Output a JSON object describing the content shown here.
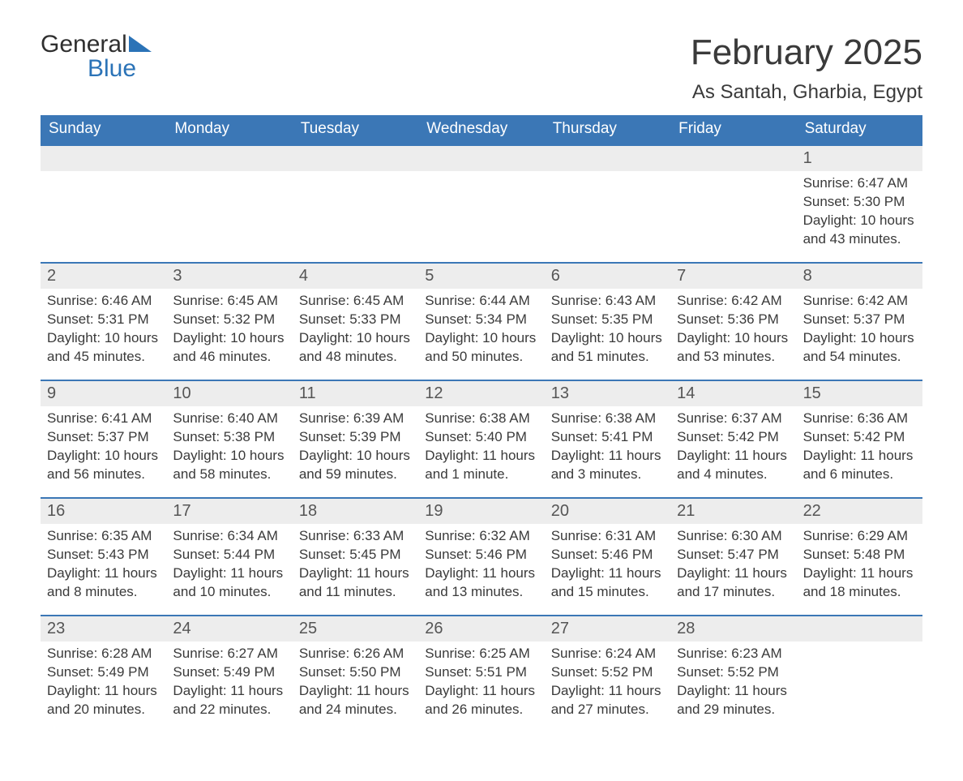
{
  "brand": {
    "word1": "General",
    "word2": "Blue",
    "color_general": "#2f2f2f",
    "color_blue": "#2b73b7",
    "triangle_color": "#2b73b7"
  },
  "header": {
    "month_title": "February 2025",
    "location": "As Santah, Gharbia, Egypt"
  },
  "style": {
    "header_bg": "#3b77b6",
    "header_text": "#ffffff",
    "daynum_bg": "#ededed",
    "daynum_border": "#3b77b6",
    "page_bg": "#ffffff",
    "body_text": "#3a3a3a",
    "daynum_text": "#555555",
    "title_fontsize": 44,
    "location_fontsize": 24,
    "weekday_fontsize": 19,
    "daynum_fontsize": 20,
    "detail_fontsize": 17
  },
  "calendar": {
    "columns": 7,
    "weekdays": [
      "Sunday",
      "Monday",
      "Tuesday",
      "Wednesday",
      "Thursday",
      "Friday",
      "Saturday"
    ],
    "weeks": [
      {
        "days": [
          {
            "num": "",
            "sunrise": "",
            "sunset": "",
            "daylight": ""
          },
          {
            "num": "",
            "sunrise": "",
            "sunset": "",
            "daylight": ""
          },
          {
            "num": "",
            "sunrise": "",
            "sunset": "",
            "daylight": ""
          },
          {
            "num": "",
            "sunrise": "",
            "sunset": "",
            "daylight": ""
          },
          {
            "num": "",
            "sunrise": "",
            "sunset": "",
            "daylight": ""
          },
          {
            "num": "",
            "sunrise": "",
            "sunset": "",
            "daylight": ""
          },
          {
            "num": "1",
            "sunrise": "Sunrise: 6:47 AM",
            "sunset": "Sunset: 5:30 PM",
            "daylight": "Daylight: 10 hours and 43 minutes."
          }
        ]
      },
      {
        "days": [
          {
            "num": "2",
            "sunrise": "Sunrise: 6:46 AM",
            "sunset": "Sunset: 5:31 PM",
            "daylight": "Daylight: 10 hours and 45 minutes."
          },
          {
            "num": "3",
            "sunrise": "Sunrise: 6:45 AM",
            "sunset": "Sunset: 5:32 PM",
            "daylight": "Daylight: 10 hours and 46 minutes."
          },
          {
            "num": "4",
            "sunrise": "Sunrise: 6:45 AM",
            "sunset": "Sunset: 5:33 PM",
            "daylight": "Daylight: 10 hours and 48 minutes."
          },
          {
            "num": "5",
            "sunrise": "Sunrise: 6:44 AM",
            "sunset": "Sunset: 5:34 PM",
            "daylight": "Daylight: 10 hours and 50 minutes."
          },
          {
            "num": "6",
            "sunrise": "Sunrise: 6:43 AM",
            "sunset": "Sunset: 5:35 PM",
            "daylight": "Daylight: 10 hours and 51 minutes."
          },
          {
            "num": "7",
            "sunrise": "Sunrise: 6:42 AM",
            "sunset": "Sunset: 5:36 PM",
            "daylight": "Daylight: 10 hours and 53 minutes."
          },
          {
            "num": "8",
            "sunrise": "Sunrise: 6:42 AM",
            "sunset": "Sunset: 5:37 PM",
            "daylight": "Daylight: 10 hours and 54 minutes."
          }
        ]
      },
      {
        "days": [
          {
            "num": "9",
            "sunrise": "Sunrise: 6:41 AM",
            "sunset": "Sunset: 5:37 PM",
            "daylight": "Daylight: 10 hours and 56 minutes."
          },
          {
            "num": "10",
            "sunrise": "Sunrise: 6:40 AM",
            "sunset": "Sunset: 5:38 PM",
            "daylight": "Daylight: 10 hours and 58 minutes."
          },
          {
            "num": "11",
            "sunrise": "Sunrise: 6:39 AM",
            "sunset": "Sunset: 5:39 PM",
            "daylight": "Daylight: 10 hours and 59 minutes."
          },
          {
            "num": "12",
            "sunrise": "Sunrise: 6:38 AM",
            "sunset": "Sunset: 5:40 PM",
            "daylight": "Daylight: 11 hours and 1 minute."
          },
          {
            "num": "13",
            "sunrise": "Sunrise: 6:38 AM",
            "sunset": "Sunset: 5:41 PM",
            "daylight": "Daylight: 11 hours and 3 minutes."
          },
          {
            "num": "14",
            "sunrise": "Sunrise: 6:37 AM",
            "sunset": "Sunset: 5:42 PM",
            "daylight": "Daylight: 11 hours and 4 minutes."
          },
          {
            "num": "15",
            "sunrise": "Sunrise: 6:36 AM",
            "sunset": "Sunset: 5:42 PM",
            "daylight": "Daylight: 11 hours and 6 minutes."
          }
        ]
      },
      {
        "days": [
          {
            "num": "16",
            "sunrise": "Sunrise: 6:35 AM",
            "sunset": "Sunset: 5:43 PM",
            "daylight": "Daylight: 11 hours and 8 minutes."
          },
          {
            "num": "17",
            "sunrise": "Sunrise: 6:34 AM",
            "sunset": "Sunset: 5:44 PM",
            "daylight": "Daylight: 11 hours and 10 minutes."
          },
          {
            "num": "18",
            "sunrise": "Sunrise: 6:33 AM",
            "sunset": "Sunset: 5:45 PM",
            "daylight": "Daylight: 11 hours and 11 minutes."
          },
          {
            "num": "19",
            "sunrise": "Sunrise: 6:32 AM",
            "sunset": "Sunset: 5:46 PM",
            "daylight": "Daylight: 11 hours and 13 minutes."
          },
          {
            "num": "20",
            "sunrise": "Sunrise: 6:31 AM",
            "sunset": "Sunset: 5:46 PM",
            "daylight": "Daylight: 11 hours and 15 minutes."
          },
          {
            "num": "21",
            "sunrise": "Sunrise: 6:30 AM",
            "sunset": "Sunset: 5:47 PM",
            "daylight": "Daylight: 11 hours and 17 minutes."
          },
          {
            "num": "22",
            "sunrise": "Sunrise: 6:29 AM",
            "sunset": "Sunset: 5:48 PM",
            "daylight": "Daylight: 11 hours and 18 minutes."
          }
        ]
      },
      {
        "days": [
          {
            "num": "23",
            "sunrise": "Sunrise: 6:28 AM",
            "sunset": "Sunset: 5:49 PM",
            "daylight": "Daylight: 11 hours and 20 minutes."
          },
          {
            "num": "24",
            "sunrise": "Sunrise: 6:27 AM",
            "sunset": "Sunset: 5:49 PM",
            "daylight": "Daylight: 11 hours and 22 minutes."
          },
          {
            "num": "25",
            "sunrise": "Sunrise: 6:26 AM",
            "sunset": "Sunset: 5:50 PM",
            "daylight": "Daylight: 11 hours and 24 minutes."
          },
          {
            "num": "26",
            "sunrise": "Sunrise: 6:25 AM",
            "sunset": "Sunset: 5:51 PM",
            "daylight": "Daylight: 11 hours and 26 minutes."
          },
          {
            "num": "27",
            "sunrise": "Sunrise: 6:24 AM",
            "sunset": "Sunset: 5:52 PM",
            "daylight": "Daylight: 11 hours and 27 minutes."
          },
          {
            "num": "28",
            "sunrise": "Sunrise: 6:23 AM",
            "sunset": "Sunset: 5:52 PM",
            "daylight": "Daylight: 11 hours and 29 minutes."
          },
          {
            "num": "",
            "sunrise": "",
            "sunset": "",
            "daylight": ""
          }
        ]
      }
    ]
  }
}
